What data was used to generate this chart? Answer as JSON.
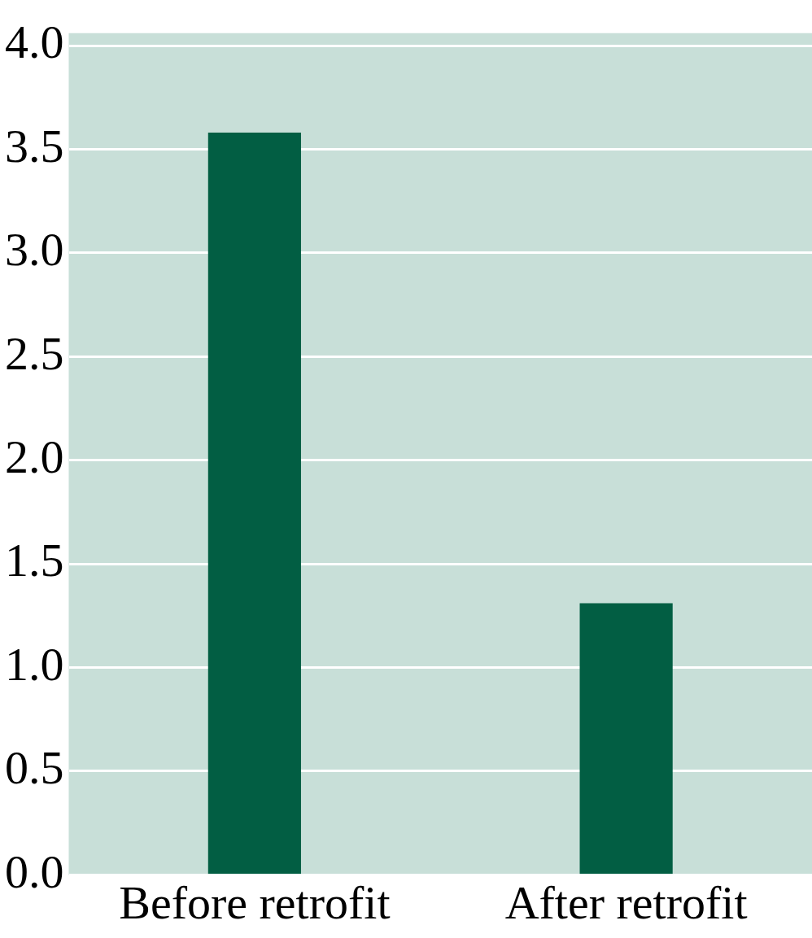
{
  "chart_data": {
    "type": "bar",
    "categories": [
      "Before retrofit",
      "After retrofit"
    ],
    "values": [
      3.58,
      1.31
    ],
    "color": "#025e43",
    "ylim": [
      0,
      4.06
    ],
    "yticks": [
      {
        "value": 0,
        "label": "0.0"
      },
      0.5,
      {
        "value": 1,
        "label": "1.0"
      },
      1.5,
      {
        "value": 2,
        "label": "2.0"
      },
      2.5,
      {
        "value": 3,
        "label": "3.0"
      },
      3.5,
      {
        "value": 4,
        "label": "4.0"
      }
    ],
    "grid": "y"
  }
}
